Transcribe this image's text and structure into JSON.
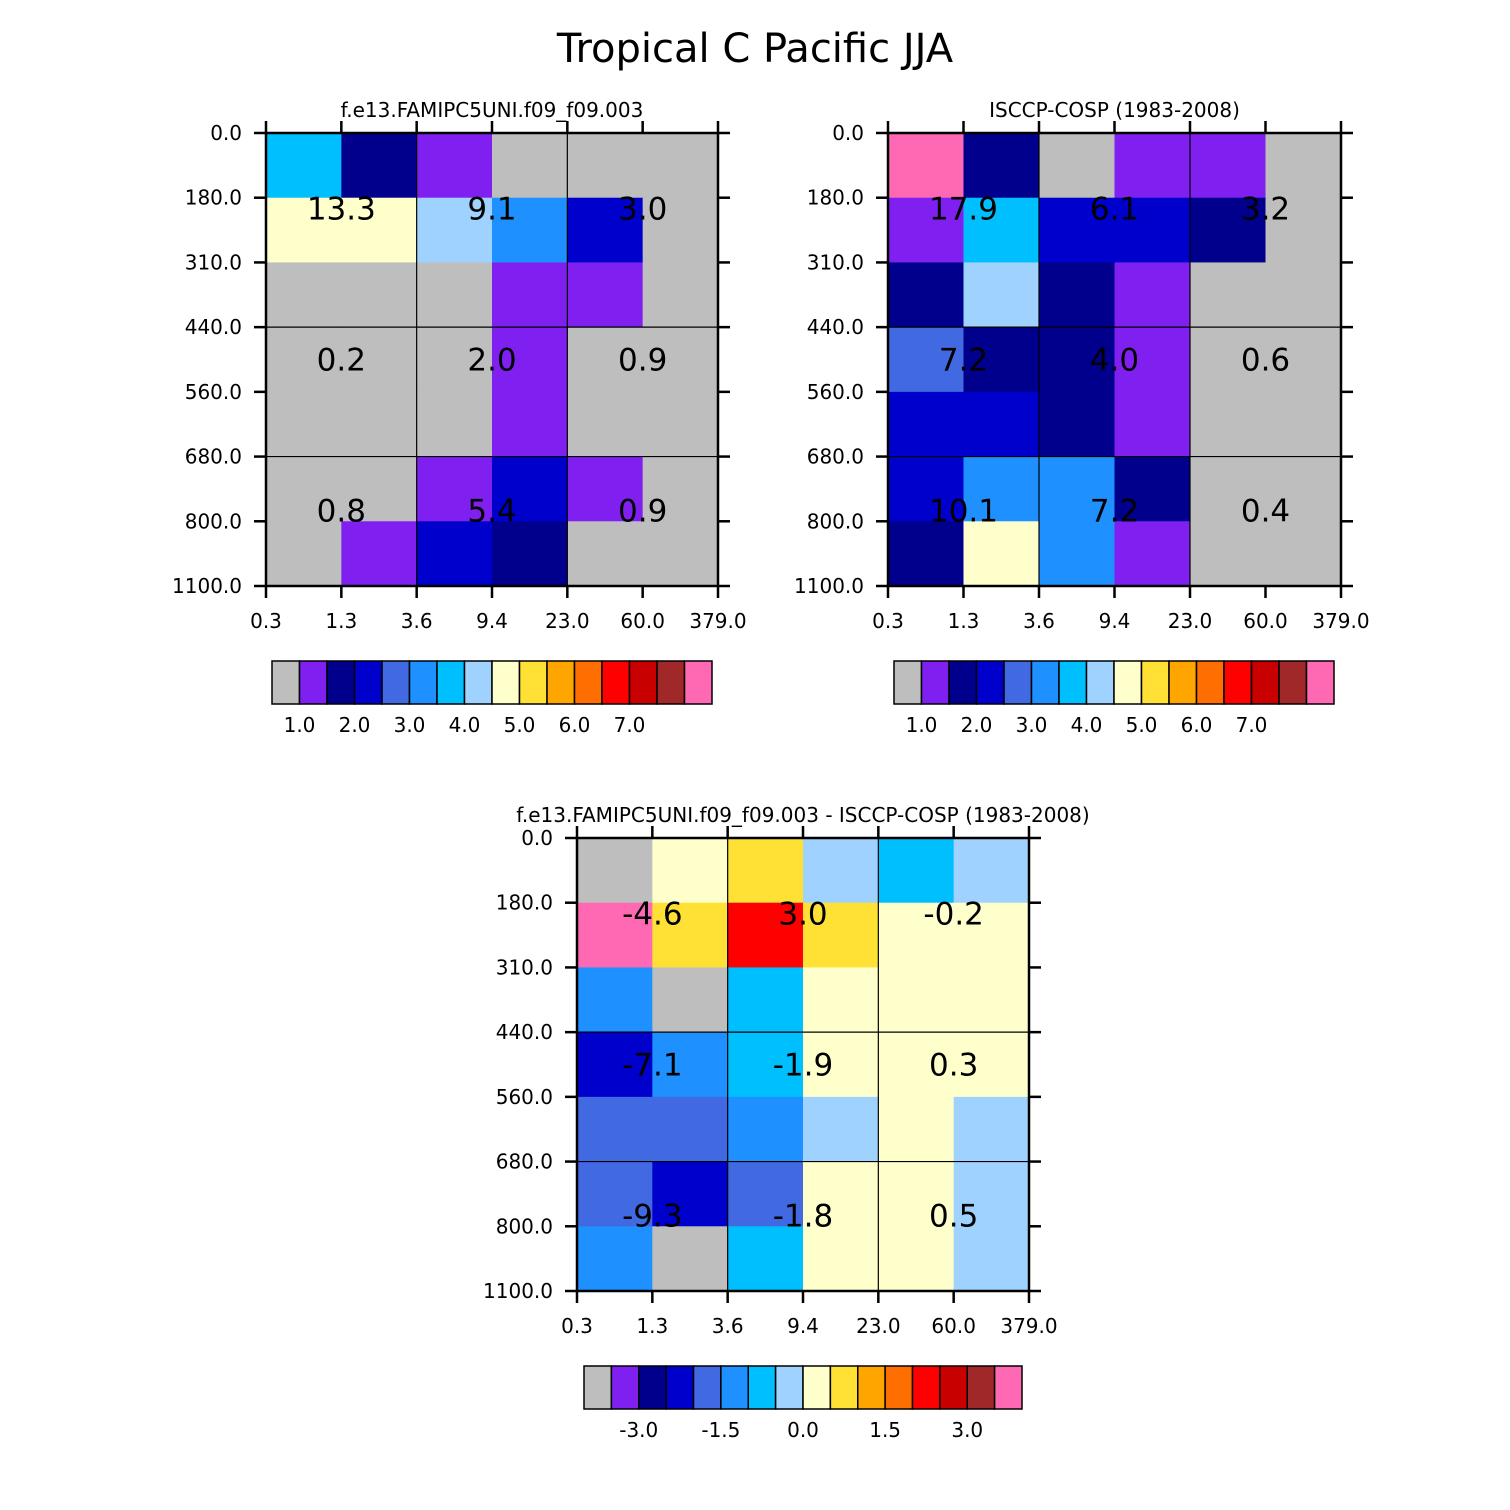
{
  "figure": {
    "title": "Tropical C Pacific JJA"
  },
  "palette": [
    "#BEBEBE",
    "#8020F0",
    "#00008C",
    "#0000CD",
    "#4169E1",
    "#1E90FF",
    "#00BFFF",
    "#A0D2FF",
    "#FFFFCC",
    "#FFE135",
    "#FFA500",
    "#FF6E00",
    "#FF0000",
    "#C80000",
    "#A02828",
    "#FF69B4"
  ],
  "chart_data": [
    {
      "id": "model",
      "type": "heatmap",
      "title": "f.e13.FAMIPC5UNI.f09_f09.003",
      "x_ticks": [
        "0.3",
        "1.3",
        "3.6",
        "9.4",
        "23.0",
        "60.0",
        "379.0"
      ],
      "y_ticks": [
        "0.0",
        "180.0",
        "310.0",
        "440.0",
        "560.0",
        "680.0",
        "800.0",
        "1100.0"
      ],
      "grid": true,
      "color_index_grid": [
        [
          6,
          2,
          1,
          0,
          0,
          0
        ],
        [
          8,
          8,
          7,
          5,
          3,
          0
        ],
        [
          0,
          0,
          0,
          1,
          1,
          0
        ],
        [
          0,
          0,
          0,
          1,
          0,
          0
        ],
        [
          0,
          0,
          0,
          1,
          0,
          0
        ],
        [
          0,
          0,
          1,
          3,
          1,
          0
        ],
        [
          0,
          1,
          3,
          2,
          0,
          0
        ]
      ],
      "bin_sums": [
        {
          "col": 0,
          "row": 0,
          "label": "13.3"
        },
        {
          "col": 1,
          "row": 0,
          "label": "9.1"
        },
        {
          "col": 2,
          "row": 0,
          "label": "3.0"
        },
        {
          "col": 0,
          "row": 1,
          "label": "0.2"
        },
        {
          "col": 1,
          "row": 1,
          "label": "2.0"
        },
        {
          "col": 2,
          "row": 1,
          "label": "0.9"
        },
        {
          "col": 0,
          "row": 2,
          "label": "0.8"
        },
        {
          "col": 1,
          "row": 2,
          "label": "5.4"
        },
        {
          "col": 2,
          "row": 2,
          "label": "0.9"
        }
      ],
      "colorbar_labels": [
        "1.0",
        "2.0",
        "3.0",
        "4.0",
        "5.0",
        "6.0",
        "7.0"
      ]
    },
    {
      "id": "obs",
      "type": "heatmap",
      "title": "ISCCP-COSP (1983-2008)",
      "x_ticks": [
        "0.3",
        "1.3",
        "3.6",
        "9.4",
        "23.0",
        "60.0",
        "379.0"
      ],
      "y_ticks": [
        "0.0",
        "180.0",
        "310.0",
        "440.0",
        "560.0",
        "680.0",
        "800.0",
        "1100.0"
      ],
      "grid": true,
      "color_index_grid": [
        [
          15,
          2,
          0,
          1,
          1,
          0
        ],
        [
          1,
          6,
          3,
          3,
          2,
          0
        ],
        [
          2,
          7,
          2,
          1,
          0,
          0
        ],
        [
          4,
          2,
          2,
          1,
          0,
          0
        ],
        [
          3,
          3,
          2,
          1,
          0,
          0
        ],
        [
          3,
          5,
          5,
          2,
          0,
          0
        ],
        [
          2,
          8,
          5,
          1,
          0,
          0
        ]
      ],
      "bin_sums": [
        {
          "col": 0,
          "row": 0,
          "label": "17.9"
        },
        {
          "col": 1,
          "row": 0,
          "label": "6.1"
        },
        {
          "col": 2,
          "row": 0,
          "label": "3.2"
        },
        {
          "col": 0,
          "row": 1,
          "label": "7.2"
        },
        {
          "col": 1,
          "row": 1,
          "label": "4.0"
        },
        {
          "col": 2,
          "row": 1,
          "label": "0.6"
        },
        {
          "col": 0,
          "row": 2,
          "label": "10.1"
        },
        {
          "col": 1,
          "row": 2,
          "label": "7.2"
        },
        {
          "col": 2,
          "row": 2,
          "label": "0.4"
        }
      ],
      "colorbar_labels": [
        "1.0",
        "2.0",
        "3.0",
        "4.0",
        "5.0",
        "6.0",
        "7.0"
      ]
    },
    {
      "id": "diff",
      "type": "heatmap",
      "title": "f.e13.FAMIPC5UNI.f09_f09.003 - ISCCP-COSP (1983-2008)",
      "x_ticks": [
        "0.3",
        "1.3",
        "3.6",
        "9.4",
        "23.0",
        "60.0",
        "379.0"
      ],
      "y_ticks": [
        "0.0",
        "180.0",
        "310.0",
        "440.0",
        "560.0",
        "680.0",
        "800.0",
        "1100.0"
      ],
      "grid": true,
      "color_index_grid": [
        [
          0,
          8,
          9,
          7,
          6,
          7
        ],
        [
          15,
          9,
          12,
          9,
          8,
          8
        ],
        [
          5,
          0,
          6,
          8,
          8,
          8
        ],
        [
          3,
          5,
          6,
          8,
          8,
          8
        ],
        [
          4,
          4,
          5,
          7,
          8,
          7
        ],
        [
          4,
          3,
          4,
          8,
          8,
          7
        ],
        [
          5,
          0,
          6,
          8,
          8,
          7
        ]
      ],
      "bin_sums": [
        {
          "col": 0,
          "row": 0,
          "label": "-4.6"
        },
        {
          "col": 1,
          "row": 0,
          "label": "3.0"
        },
        {
          "col": 2,
          "row": 0,
          "label": "-0.2"
        },
        {
          "col": 0,
          "row": 1,
          "label": "-7.1"
        },
        {
          "col": 1,
          "row": 1,
          "label": "-1.9"
        },
        {
          "col": 2,
          "row": 1,
          "label": "0.3"
        },
        {
          "col": 0,
          "row": 2,
          "label": "-9.3"
        },
        {
          "col": 1,
          "row": 2,
          "label": "-1.8"
        },
        {
          "col": 2,
          "row": 2,
          "label": "0.5"
        }
      ],
      "colorbar_labels": [
        "-3.0",
        "-1.5",
        "0.0",
        "1.5",
        "3.0"
      ]
    }
  ]
}
